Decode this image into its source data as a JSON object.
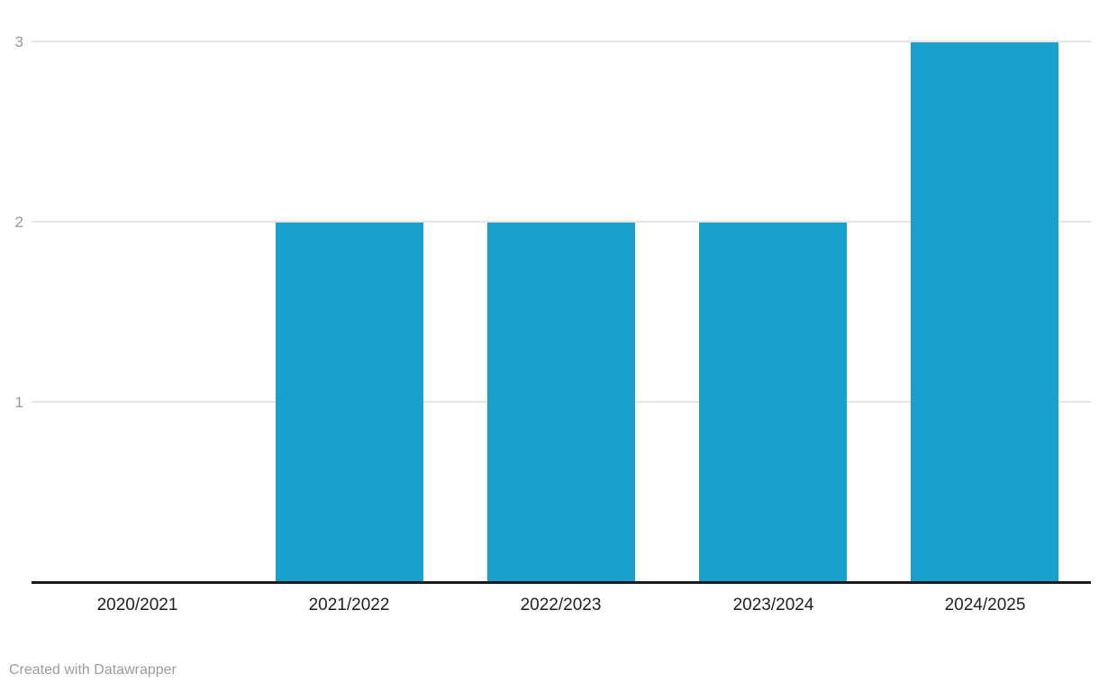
{
  "chart_data": {
    "type": "bar",
    "categories": [
      "2020/2021",
      "2021/2022",
      "2022/2023",
      "2023/2024",
      "2024/2025"
    ],
    "values": [
      0,
      2,
      2,
      2,
      3
    ],
    "title": "",
    "xlabel": "",
    "ylabel": "",
    "ylim": [
      0,
      3
    ],
    "yticks": [
      1,
      2,
      3
    ],
    "grid": true,
    "legend": "none",
    "bar_color": "#18a1cd",
    "grid_color": "#e4e4e4",
    "axis_line_color": "#1a1a1a",
    "y_tick_label_color": "#989898",
    "x_tick_label_color": "#1f1f1f"
  },
  "footer": {
    "credit": "Created with Datawrapper"
  }
}
